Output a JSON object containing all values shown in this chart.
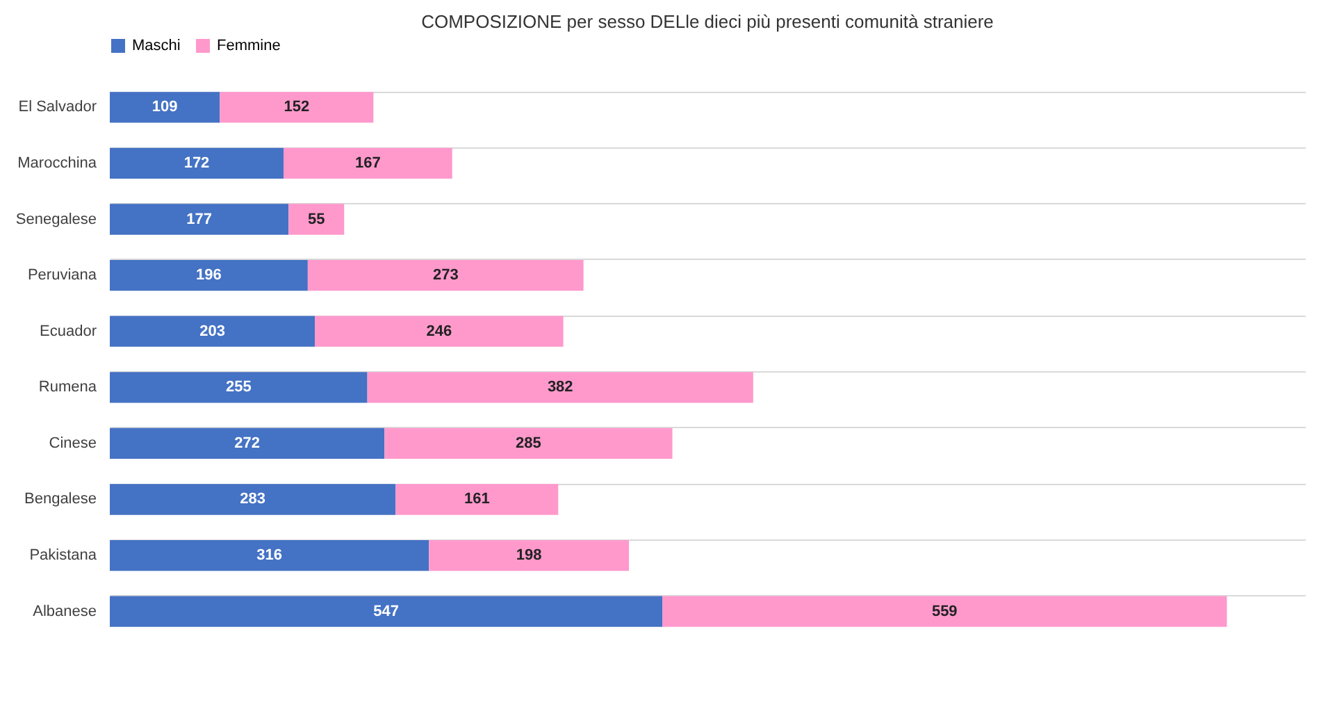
{
  "chart_data": {
    "type": "bar",
    "orientation": "horizontal",
    "stacked": true,
    "title": "COMPOSIZIONE per sesso DELle dieci più presenti comunità straniere",
    "categories": [
      "El Salvador",
      "Marocchina",
      "Senegalese",
      "Peruviana",
      "Ecuador",
      "Rumena",
      "Cinese",
      "Bengalese",
      "Pakistana",
      "Albanese"
    ],
    "series": [
      {
        "name": "Maschi",
        "color": "#4472c4",
        "values": [
          109,
          172,
          177,
          196,
          203,
          255,
          272,
          283,
          316,
          547
        ]
      },
      {
        "name": "Femmine",
        "color": "#ff99cc",
        "values": [
          152,
          167,
          55,
          273,
          246,
          382,
          285,
          161,
          198,
          559
        ]
      }
    ],
    "data_labels": true,
    "legend": "top",
    "grid": "y"
  }
}
